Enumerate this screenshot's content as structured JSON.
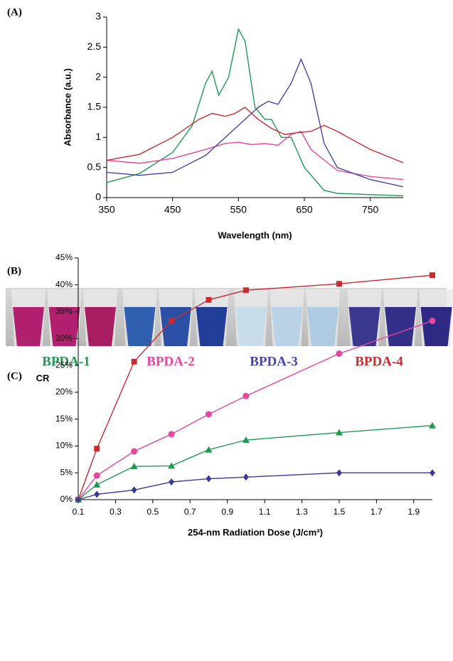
{
  "chart_data": [
    {
      "type": "line",
      "panel_label": "(A)",
      "x_label": "Wavelength (nm)",
      "y_label": "Absorbance (a.u.)",
      "xlim": [
        350,
        800
      ],
      "xticks": [
        350,
        450,
        550,
        650,
        750
      ],
      "ylim": [
        0,
        3
      ],
      "yticks": [
        0,
        0.5,
        1,
        1.5,
        2,
        2.5,
        3
      ],
      "series": [
        {
          "name": "BPDA-1",
          "color": "#1e9a50",
          "x": [
            350,
            400,
            450,
            480,
            500,
            510,
            520,
            535,
            550,
            560,
            575,
            590,
            600,
            615,
            630,
            650,
            680,
            700,
            750,
            800
          ],
          "values": [
            0.25,
            0.4,
            0.75,
            1.2,
            1.9,
            2.1,
            1.7,
            2.0,
            2.8,
            2.6,
            1.5,
            1.3,
            1.3,
            1.0,
            1.0,
            0.5,
            0.12,
            0.07,
            0.05,
            0.03
          ]
        },
        {
          "name": "BPDA-2",
          "color": "#e8459e",
          "x": [
            350,
            400,
            450,
            500,
            530,
            550,
            570,
            590,
            610,
            630,
            645,
            660,
            700,
            750,
            800
          ],
          "values": [
            0.62,
            0.57,
            0.65,
            0.8,
            0.9,
            0.92,
            0.88,
            0.9,
            0.87,
            1.05,
            1.1,
            0.8,
            0.45,
            0.35,
            0.3
          ]
        },
        {
          "name": "BPDA-3",
          "color": "#4346ad",
          "x": [
            350,
            400,
            450,
            500,
            550,
            580,
            595,
            610,
            630,
            645,
            660,
            680,
            700,
            750,
            800
          ],
          "values": [
            0.42,
            0.37,
            0.42,
            0.7,
            1.2,
            1.5,
            1.6,
            1.55,
            1.9,
            2.3,
            1.9,
            0.9,
            0.5,
            0.3,
            0.18
          ]
        },
        {
          "name": "BPDA-4",
          "color": "#cc2a2e",
          "x": [
            350,
            400,
            450,
            490,
            510,
            530,
            545,
            560,
            580,
            600,
            620,
            640,
            660,
            680,
            700,
            750,
            800
          ],
          "values": [
            0.62,
            0.72,
            1.0,
            1.3,
            1.4,
            1.35,
            1.4,
            1.5,
            1.3,
            1.15,
            1.05,
            1.08,
            1.1,
            1.2,
            1.1,
            0.8,
            0.58
          ]
        }
      ]
    },
    {
      "type": "scatter",
      "panel_label": "(C)",
      "x_label": "254-nm Radiation Dose (J/cm²)",
      "y_label": "CR",
      "xlim": [
        0.1,
        2.0
      ],
      "xticks": [
        0.1,
        0.3,
        0.5,
        0.7,
        0.9,
        1.1,
        1.3,
        1.5,
        1.7,
        1.9
      ],
      "ylim": [
        0,
        45
      ],
      "yticks": [
        {
          "value": 0,
          "label": "0%"
        },
        {
          "value": 5,
          "label": "5%"
        },
        {
          "value": 10,
          "label": "10%"
        },
        {
          "value": 15,
          "label": "15%"
        },
        {
          "value": 20,
          "label": "20%"
        },
        {
          "value": 25,
          "label": "25%"
        },
        {
          "value": 30,
          "label": "30%"
        },
        {
          "value": 35,
          "label": "35%"
        },
        {
          "value": 40,
          "label": "40%"
        },
        {
          "value": 45,
          "label": "45%"
        }
      ],
      "x": [
        0.1,
        0.2,
        0.4,
        0.6,
        0.8,
        1.0,
        1.5,
        2.0
      ],
      "series": [
        {
          "color": "#cc2a2e",
          "marker": "square",
          "values": [
            0,
            9.5,
            25.7,
            33.3,
            37.2,
            39,
            40.2,
            41.8
          ]
        },
        {
          "color": "#e8459e",
          "marker": "circle",
          "values": [
            0,
            4.5,
            9,
            12.2,
            15.9,
            19.3,
            27.2,
            33.3
          ]
        },
        {
          "color": "#1e9a50",
          "marker": "triangle",
          "values": [
            0,
            2.8,
            6.2,
            6.3,
            9.3,
            11.1,
            12.5,
            13.8
          ]
        },
        {
          "color": "#3a3a96",
          "marker": "diamond",
          "values": [
            0,
            1,
            1.8,
            3.3,
            3.9,
            4.2,
            5,
            5
          ]
        }
      ]
    }
  ],
  "photo": {
    "panel_label": "(B)"
  }
}
